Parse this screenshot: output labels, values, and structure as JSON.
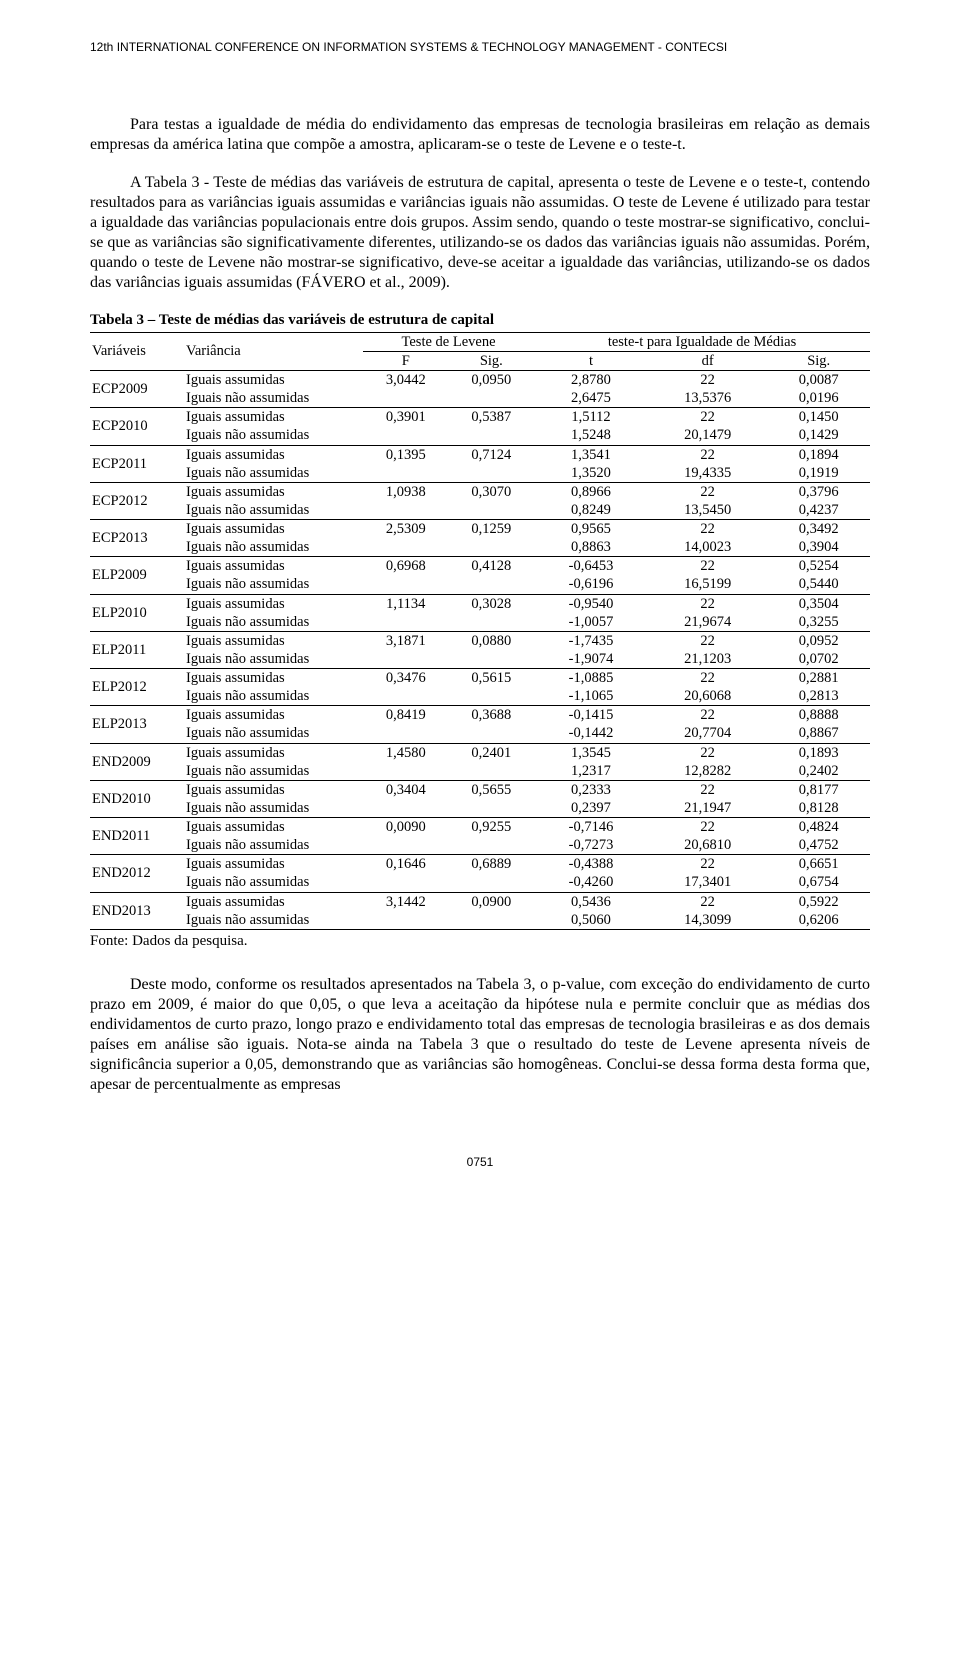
{
  "header": "12th INTERNATIONAL CONFERENCE ON INFORMATION SYSTEMS & TECHNOLOGY MANAGEMENT - CONTECSI",
  "paragraph1": "Para testas a igualdade de média do endividamento das empresas de tecnologia brasileiras em relação as demais empresas da américa latina que compõe a amostra, aplicaram-se o teste de Levene e o teste-t.",
  "paragraph2": "A Tabela 3 - Teste de médias das variáveis de estrutura de capital, apresenta o teste de Levene e o teste-t, contendo resultados para as variâncias iguais assumidas e variâncias iguais não assumidas. O teste de Levene é utilizado para testar a igualdade das variâncias populacionais entre dois grupos. Assim sendo, quando o teste mostrar-se significativo, conclui-se que as variâncias são significativamente diferentes, utilizando-se os dados das variâncias iguais não assumidas. Porém, quando o teste de Levene não mostrar-se significativo, deve-se aceitar a igualdade das variâncias, utilizando-se os dados das variâncias iguais assumidas (FÁVERO et al., 2009).",
  "tableTitle": "Tabela 3 – Teste de médias das variáveis de estrutura de capital",
  "colHeaders": {
    "variaveis": "Variáveis",
    "variancia": "Variância",
    "levene": "Teste de Levene",
    "ttest": "teste-t para Igualdade de Médias",
    "F": "F",
    "Sig": "Sig.",
    "t": "t",
    "df": "df",
    "Sig2": "Sig."
  },
  "varianceLabels": {
    "assumed": "Iguais assumidas",
    "notAssumed": "Iguais não assumidas"
  },
  "rows": [
    {
      "var": "ECP2009",
      "F": "3,0442",
      "SigL": "0,0950",
      "t1": "2,8780",
      "df1": "22",
      "Sig1": "0,0087",
      "t2": "2,6475",
      "df2": "13,5376",
      "Sig2": "0,0196"
    },
    {
      "var": "ECP2010",
      "F": "0,3901",
      "SigL": "0,5387",
      "t1": "1,5112",
      "df1": "22",
      "Sig1": "0,1450",
      "t2": "1,5248",
      "df2": "20,1479",
      "Sig2": "0,1429"
    },
    {
      "var": "ECP2011",
      "F": "0,1395",
      "SigL": "0,7124",
      "t1": "1,3541",
      "df1": "22",
      "Sig1": "0,1894",
      "t2": "1,3520",
      "df2": "19,4335",
      "Sig2": "0,1919"
    },
    {
      "var": "ECP2012",
      "F": "1,0938",
      "SigL": "0,3070",
      "t1": "0,8966",
      "df1": "22",
      "Sig1": "0,3796",
      "t2": "0,8249",
      "df2": "13,5450",
      "Sig2": "0,4237"
    },
    {
      "var": "ECP2013",
      "F": "2,5309",
      "SigL": "0,1259",
      "t1": "0,9565",
      "df1": "22",
      "Sig1": "0,3492",
      "t2": "0,8863",
      "df2": "14,0023",
      "Sig2": "0,3904"
    },
    {
      "var": "ELP2009",
      "F": "0,6968",
      "SigL": "0,4128",
      "t1": "-0,6453",
      "df1": "22",
      "Sig1": "0,5254",
      "t2": "-0,6196",
      "df2": "16,5199",
      "Sig2": "0,5440"
    },
    {
      "var": "ELP2010",
      "F": "1,1134",
      "SigL": "0,3028",
      "t1": "-0,9540",
      "df1": "22",
      "Sig1": "0,3504",
      "t2": "-1,0057",
      "df2": "21,9674",
      "Sig2": "0,3255"
    },
    {
      "var": "ELP2011",
      "F": "3,1871",
      "SigL": "0,0880",
      "t1": "-1,7435",
      "df1": "22",
      "Sig1": "0,0952",
      "t2": "-1,9074",
      "df2": "21,1203",
      "Sig2": "0,0702"
    },
    {
      "var": "ELP2012",
      "F": "0,3476",
      "SigL": "0,5615",
      "t1": "-1,0885",
      "df1": "22",
      "Sig1": "0,2881",
      "t2": "-1,1065",
      "df2": "20,6068",
      "Sig2": "0,2813"
    },
    {
      "var": "ELP2013",
      "F": "0,8419",
      "SigL": "0,3688",
      "t1": "-0,1415",
      "df1": "22",
      "Sig1": "0,8888",
      "t2": "-0,1442",
      "df2": "20,7704",
      "Sig2": "0,8867"
    },
    {
      "var": "END2009",
      "F": "1,4580",
      "SigL": "0,2401",
      "t1": "1,3545",
      "df1": "22",
      "Sig1": "0,1893",
      "t2": "1,2317",
      "df2": "12,8282",
      "Sig2": "0,2402"
    },
    {
      "var": "END2010",
      "F": "0,3404",
      "SigL": "0,5655",
      "t1": "0,2333",
      "df1": "22",
      "Sig1": "0,8177",
      "t2": "0,2397",
      "df2": "21,1947",
      "Sig2": "0,8128"
    },
    {
      "var": "END2011",
      "F": "0,0090",
      "SigL": "0,9255",
      "t1": "-0,7146",
      "df1": "22",
      "Sig1": "0,4824",
      "t2": "-0,7273",
      "df2": "20,6810",
      "Sig2": "0,4752"
    },
    {
      "var": "END2012",
      "F": "0,1646",
      "SigL": "0,6889",
      "t1": "-0,4388",
      "df1": "22",
      "Sig1": "0,6651",
      "t2": "-0,4260",
      "df2": "17,3401",
      "Sig2": "0,6754"
    },
    {
      "var": "END2013",
      "F": "3,1442",
      "SigL": "0,0900",
      "t1": "0,5436",
      "df1": "22",
      "Sig1": "0,5922",
      "t2": "0,5060",
      "df2": "14,3099",
      "Sig2": "0,6206"
    }
  ],
  "source": "Fonte: Dados da pesquisa.",
  "paragraph3": "Deste modo, conforme os resultados apresentados na Tabela 3, o p-value, com exceção do endividamento de curto prazo em 2009, é maior do que 0,05, o que leva a aceitação da hipótese nula e permite concluir que as médias dos endividamentos de curto prazo, longo prazo e endividamento total das empresas de tecnologia brasileiras e as dos demais países em análise são iguais. Nota-se ainda na Tabela 3 que o resultado do teste de Levene apresenta níveis de significância superior a 0,05, demonstrando que as variâncias são homogêneas. Conclui-se dessa forma desta forma que, apesar de percentualmente as empresas",
  "footer": "0751"
}
